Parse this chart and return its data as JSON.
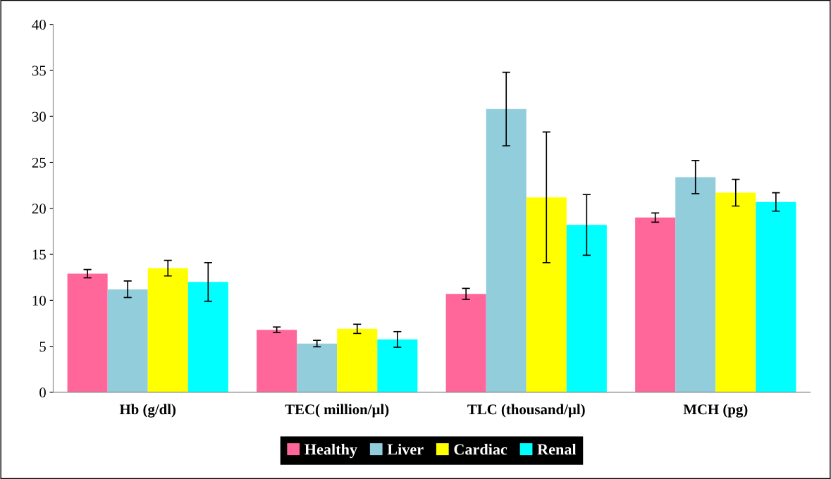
{
  "chart_data": {
    "type": "bar",
    "categories": [
      "Hb (g/dl)",
      "TEC( million/µl)",
      "TLC (thousand/µl)",
      "MCH (pg)"
    ],
    "series": [
      {
        "name": "Healthy",
        "color": "#ff6699",
        "values": [
          12.9,
          6.8,
          10.7,
          19.0
        ],
        "errors": [
          0.45,
          0.3,
          0.6,
          0.5
        ]
      },
      {
        "name": "Liver",
        "color": "#92cddc",
        "values": [
          11.2,
          5.3,
          30.8,
          23.4
        ],
        "errors": [
          0.9,
          0.35,
          4.0,
          1.8
        ]
      },
      {
        "name": "Cardiac",
        "color": "#ffff00",
        "values": [
          13.5,
          6.9,
          21.2,
          21.7
        ],
        "errors": [
          0.85,
          0.5,
          7.1,
          1.45
        ]
      },
      {
        "name": "Renal",
        "color": "#00ffff",
        "values": [
          12.0,
          5.75,
          18.2,
          20.7
        ],
        "errors": [
          2.1,
          0.85,
          3.3,
          1.0
        ]
      }
    ],
    "ylim": [
      0,
      40
    ],
    "yticks": [
      0,
      5,
      10,
      15,
      20,
      25,
      30,
      35,
      40
    ],
    "grid": false,
    "legend": "bottom"
  }
}
